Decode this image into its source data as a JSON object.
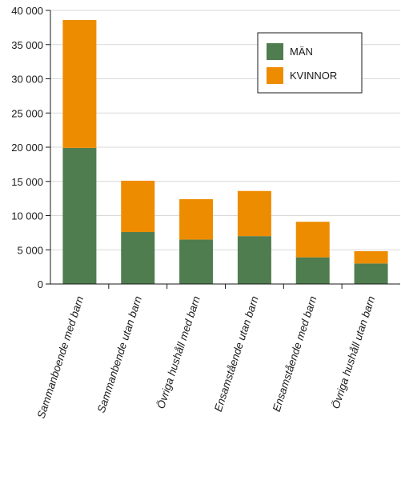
{
  "chart_data": {
    "type": "bar",
    "stacked": true,
    "categories": [
      "Sammanboende med barn",
      "Sammanbende utan barn",
      "Övriga hushåll med barn",
      "Ensamstående utan barn",
      "Ensamstående med barn",
      "Övriga hushåll utan barn"
    ],
    "series": [
      {
        "name": "MÄN",
        "color": "#4f7d4f",
        "values": [
          19900,
          7600,
          6500,
          7000,
          3900,
          3000
        ]
      },
      {
        "name": "KVINNOR",
        "color": "#ee8c00",
        "values": [
          18700,
          7500,
          5900,
          6600,
          5200,
          1800
        ]
      }
    ],
    "yticks": [
      "0",
      "5 000",
      "10 000",
      "15 000",
      "20 000",
      "25 000",
      "30 000",
      "35 000",
      "40 000"
    ],
    "ylim": [
      0,
      40000
    ],
    "grid": true,
    "legend_position": "top-right"
  }
}
